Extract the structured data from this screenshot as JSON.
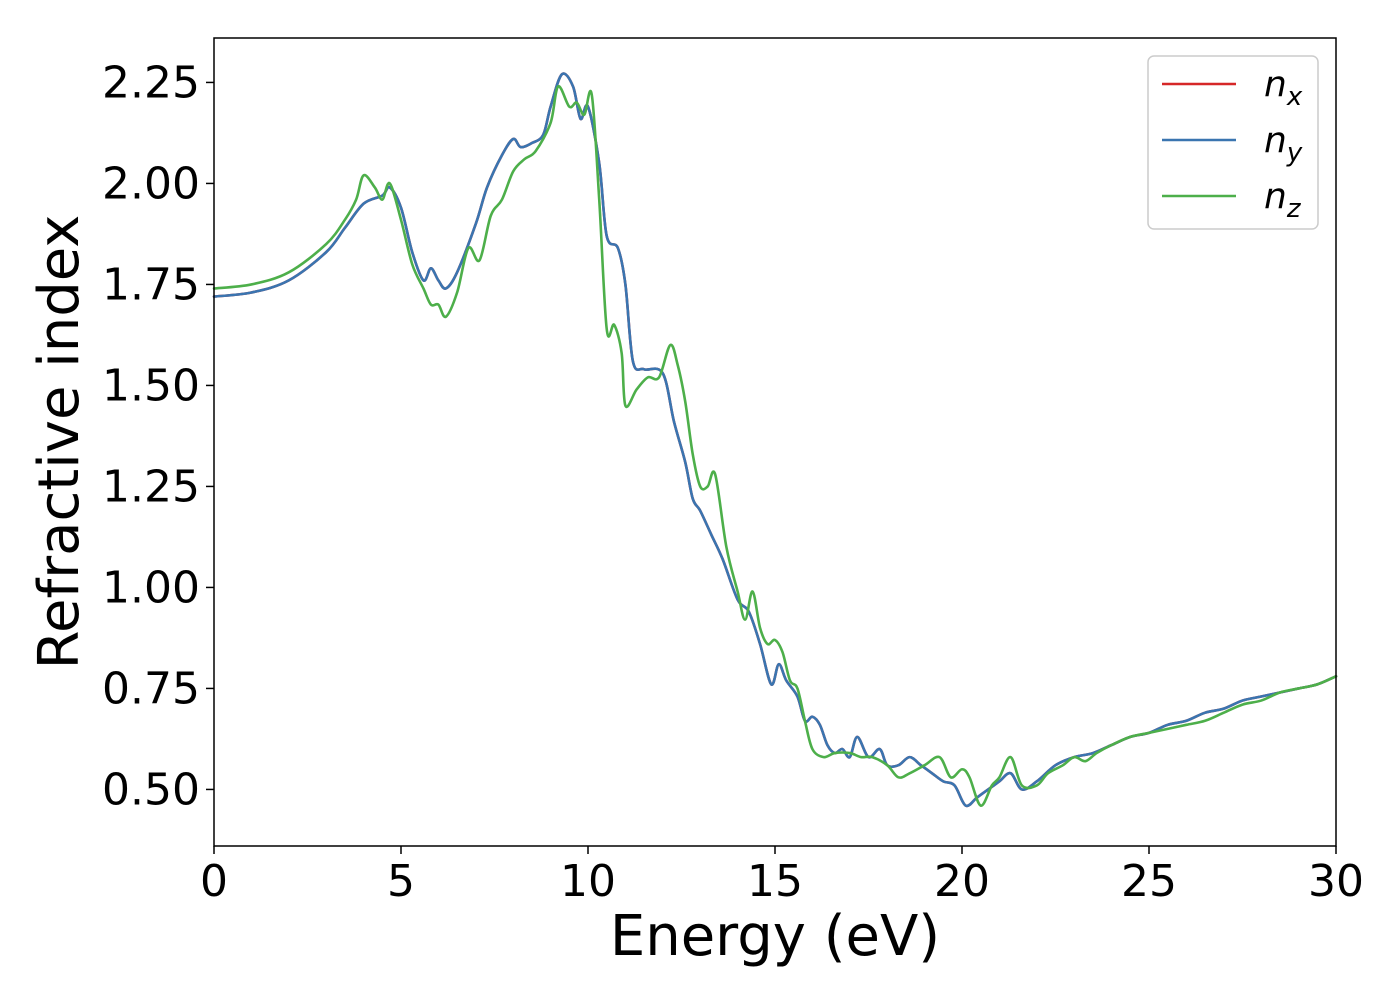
{
  "chart_data": {
    "type": "line",
    "xlabel": "Energy (eV)",
    "ylabel": "Refractive index",
    "xlim": [
      0,
      30
    ],
    "ylim": [
      0.36,
      2.36
    ],
    "x_ticks": [
      "0",
      "5",
      "10",
      "15",
      "20",
      "25",
      "30"
    ],
    "y_ticks": [
      "0.50",
      "0.75",
      "1.00",
      "1.25",
      "1.50",
      "1.75",
      "2.00",
      "2.25"
    ],
    "grid": false,
    "legend_position": "top-right",
    "series": [
      {
        "name": "n_x",
        "legend_main": "n",
        "legend_sub": "x",
        "color": "#d62728",
        "x": [
          0,
          1,
          2,
          3,
          3.5,
          4.0,
          4.5,
          4.7,
          5.0,
          5.3,
          5.6,
          5.8,
          6.0,
          6.2,
          6.5,
          7.0,
          7.3,
          7.7,
          8.0,
          8.2,
          8.5,
          8.8,
          9.0,
          9.3,
          9.6,
          9.8,
          10.0,
          10.3,
          10.5,
          10.8,
          11.0,
          11.2,
          11.5,
          12.0,
          12.3,
          12.6,
          12.8,
          13.0,
          13.3,
          13.6,
          14.0,
          14.3,
          14.6,
          14.9,
          15.1,
          15.3,
          15.6,
          15.8,
          16.0,
          16.2,
          16.4,
          16.6,
          16.8,
          17.0,
          17.2,
          17.5,
          17.8,
          18.0,
          18.3,
          18.6,
          18.9,
          19.2,
          19.5,
          19.8,
          20.1,
          20.4,
          20.7,
          21.0,
          21.3,
          21.6,
          22.0,
          22.5,
          23.0,
          23.5,
          24.0,
          24.5,
          25.0,
          25.5,
          26.0,
          26.5,
          27.0,
          27.5,
          28.0,
          28.5,
          29.0,
          29.5,
          30.0
        ],
        "y": [
          1.72,
          1.73,
          1.76,
          1.83,
          1.89,
          1.95,
          1.97,
          1.99,
          1.94,
          1.83,
          1.76,
          1.79,
          1.76,
          1.74,
          1.78,
          1.9,
          1.99,
          2.07,
          2.11,
          2.09,
          2.1,
          2.12,
          2.19,
          2.27,
          2.24,
          2.16,
          2.19,
          2.05,
          1.87,
          1.84,
          1.75,
          1.56,
          1.54,
          1.53,
          1.41,
          1.31,
          1.22,
          1.19,
          1.13,
          1.07,
          0.97,
          0.94,
          0.86,
          0.76,
          0.81,
          0.77,
          0.73,
          0.67,
          0.68,
          0.66,
          0.61,
          0.59,
          0.6,
          0.58,
          0.63,
          0.58,
          0.6,
          0.56,
          0.56,
          0.58,
          0.56,
          0.54,
          0.52,
          0.51,
          0.46,
          0.48,
          0.5,
          0.52,
          0.54,
          0.5,
          0.52,
          0.56,
          0.58,
          0.59,
          0.61,
          0.63,
          0.64,
          0.66,
          0.67,
          0.69,
          0.7,
          0.72,
          0.73,
          0.74,
          0.75,
          0.76,
          0.78
        ]
      },
      {
        "name": "n_y",
        "legend_main": "n",
        "legend_sub": "y",
        "color": "#3a75b0",
        "x": [
          0,
          1,
          2,
          3,
          3.5,
          4.0,
          4.5,
          4.7,
          5.0,
          5.3,
          5.6,
          5.8,
          6.0,
          6.2,
          6.5,
          7.0,
          7.3,
          7.7,
          8.0,
          8.2,
          8.5,
          8.8,
          9.0,
          9.3,
          9.6,
          9.8,
          10.0,
          10.3,
          10.5,
          10.8,
          11.0,
          11.2,
          11.5,
          12.0,
          12.3,
          12.6,
          12.8,
          13.0,
          13.3,
          13.6,
          14.0,
          14.3,
          14.6,
          14.9,
          15.1,
          15.3,
          15.6,
          15.8,
          16.0,
          16.2,
          16.4,
          16.6,
          16.8,
          17.0,
          17.2,
          17.5,
          17.8,
          18.0,
          18.3,
          18.6,
          18.9,
          19.2,
          19.5,
          19.8,
          20.1,
          20.4,
          20.7,
          21.0,
          21.3,
          21.6,
          22.0,
          22.5,
          23.0,
          23.5,
          24.0,
          24.5,
          25.0,
          25.5,
          26.0,
          26.5,
          27.0,
          27.5,
          28.0,
          28.5,
          29.0,
          29.5,
          30.0
        ],
        "y": [
          1.72,
          1.73,
          1.76,
          1.83,
          1.89,
          1.95,
          1.97,
          1.99,
          1.94,
          1.83,
          1.76,
          1.79,
          1.76,
          1.74,
          1.78,
          1.9,
          1.99,
          2.07,
          2.11,
          2.09,
          2.1,
          2.12,
          2.19,
          2.27,
          2.24,
          2.16,
          2.19,
          2.05,
          1.87,
          1.84,
          1.75,
          1.56,
          1.54,
          1.53,
          1.41,
          1.31,
          1.22,
          1.19,
          1.13,
          1.07,
          0.97,
          0.94,
          0.86,
          0.76,
          0.81,
          0.77,
          0.73,
          0.67,
          0.68,
          0.66,
          0.61,
          0.59,
          0.6,
          0.58,
          0.63,
          0.58,
          0.6,
          0.56,
          0.56,
          0.58,
          0.56,
          0.54,
          0.52,
          0.51,
          0.46,
          0.48,
          0.5,
          0.52,
          0.54,
          0.5,
          0.52,
          0.56,
          0.58,
          0.59,
          0.61,
          0.63,
          0.64,
          0.66,
          0.67,
          0.69,
          0.7,
          0.72,
          0.73,
          0.74,
          0.75,
          0.76,
          0.78
        ]
      },
      {
        "name": "n_z",
        "legend_main": "n",
        "legend_sub": "z",
        "color": "#4daf4a",
        "x": [
          0,
          1,
          2,
          3,
          3.5,
          3.8,
          4.0,
          4.3,
          4.5,
          4.7,
          5.0,
          5.3,
          5.6,
          5.8,
          6.0,
          6.2,
          6.5,
          6.8,
          7.1,
          7.4,
          7.7,
          8.0,
          8.3,
          8.6,
          9.0,
          9.2,
          9.5,
          9.7,
          9.9,
          10.1,
          10.3,
          10.5,
          10.7,
          10.9,
          11.0,
          11.3,
          11.6,
          11.9,
          12.2,
          12.4,
          12.6,
          12.8,
          13.0,
          13.2,
          13.4,
          13.7,
          14.0,
          14.2,
          14.4,
          14.6,
          14.8,
          15.0,
          15.2,
          15.4,
          15.6,
          15.8,
          16.0,
          16.3,
          16.6,
          17.0,
          17.3,
          17.6,
          18.0,
          18.3,
          18.6,
          19.0,
          19.4,
          19.7,
          20.0,
          20.2,
          20.5,
          20.8,
          21.0,
          21.3,
          21.6,
          22.0,
          22.3,
          22.7,
          23.0,
          23.3,
          23.6,
          24.0,
          24.5,
          25.0,
          25.5,
          26.0,
          26.5,
          27.0,
          27.5,
          28.0,
          28.5,
          29.0,
          29.5,
          30.0
        ],
        "y": [
          1.74,
          1.75,
          1.78,
          1.85,
          1.91,
          1.96,
          2.02,
          1.99,
          1.96,
          2.0,
          1.91,
          1.8,
          1.74,
          1.7,
          1.7,
          1.67,
          1.73,
          1.84,
          1.81,
          1.92,
          1.96,
          2.03,
          2.06,
          2.08,
          2.15,
          2.24,
          2.19,
          2.2,
          2.17,
          2.22,
          1.96,
          1.64,
          1.65,
          1.58,
          1.45,
          1.49,
          1.52,
          1.52,
          1.6,
          1.55,
          1.46,
          1.33,
          1.25,
          1.25,
          1.28,
          1.1,
          0.99,
          0.92,
          0.99,
          0.9,
          0.86,
          0.87,
          0.84,
          0.77,
          0.75,
          0.67,
          0.6,
          0.58,
          0.59,
          0.59,
          0.58,
          0.58,
          0.56,
          0.53,
          0.54,
          0.56,
          0.58,
          0.53,
          0.55,
          0.53,
          0.46,
          0.51,
          0.53,
          0.58,
          0.51,
          0.51,
          0.54,
          0.56,
          0.58,
          0.57,
          0.59,
          0.61,
          0.63,
          0.64,
          0.65,
          0.66,
          0.67,
          0.69,
          0.71,
          0.72,
          0.74,
          0.75,
          0.76,
          0.78
        ]
      }
    ]
  }
}
